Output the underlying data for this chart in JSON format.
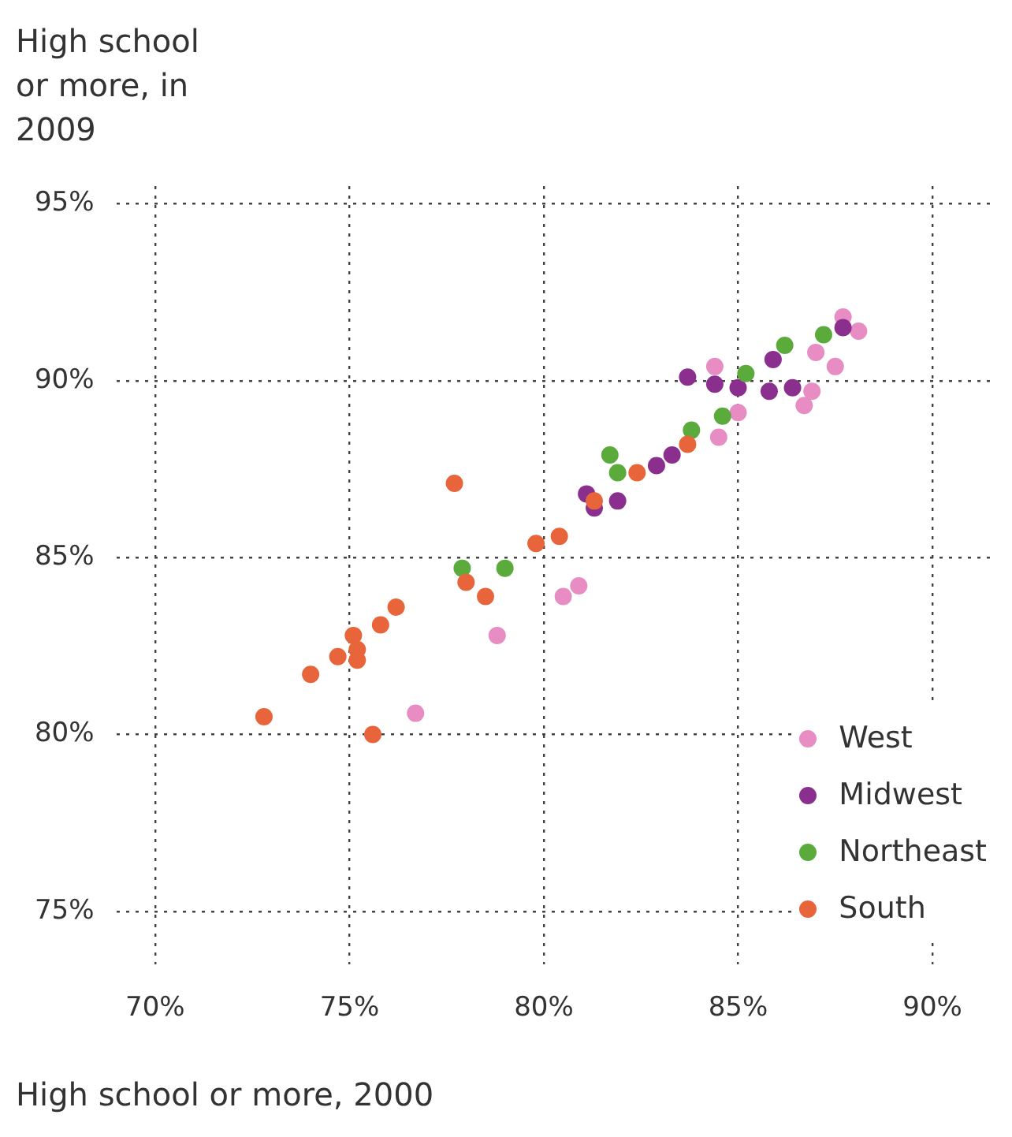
{
  "chart_data": {
    "type": "scatter",
    "xlabel": "High school or more, 2000",
    "ylabel": "High school or more, in 2009",
    "xlim": [
      69,
      91.5
    ],
    "ylim": [
      73.5,
      95.5
    ],
    "xticks": [
      {
        "value": 70,
        "label": "70%"
      },
      {
        "value": 75,
        "label": "75%"
      },
      {
        "value": 80,
        "label": "80%"
      },
      {
        "value": 85,
        "label": "85%"
      },
      {
        "value": 90,
        "label": "90%"
      }
    ],
    "yticks": [
      {
        "value": 75,
        "label": "75%"
      },
      {
        "value": 80,
        "label": "80%"
      },
      {
        "value": 85,
        "label": "85%"
      },
      {
        "value": 90,
        "label": "90%"
      },
      {
        "value": 95,
        "label": "95%"
      }
    ],
    "grid": true,
    "legend": "bottom right",
    "marker": "circle",
    "series": [
      {
        "name": "West",
        "color": "#e88cc4",
        "x": [
          76.7,
          78.8,
          80.5,
          80.9,
          84.4,
          84.5,
          85.0,
          86.7,
          86.9,
          87.0,
          87.5,
          87.7,
          88.1
        ],
        "values": [
          80.6,
          82.8,
          83.9,
          84.2,
          90.4,
          88.4,
          89.1,
          89.3,
          89.7,
          90.8,
          90.4,
          91.8,
          91.4
        ]
      },
      {
        "name": "Midwest",
        "color": "#8b2f8f",
        "x": [
          81.1,
          81.3,
          81.9,
          82.9,
          83.3,
          83.7,
          84.4,
          85.0,
          85.9,
          85.8,
          86.4,
          87.7
        ],
        "values": [
          86.8,
          86.4,
          86.6,
          87.6,
          87.9,
          90.1,
          89.9,
          89.8,
          90.6,
          89.7,
          89.8,
          91.5
        ]
      },
      {
        "name": "Northeast",
        "color": "#5aab3c",
        "x": [
          77.9,
          79.0,
          81.7,
          81.9,
          83.8,
          84.6,
          85.2,
          86.2,
          87.2
        ],
        "values": [
          84.7,
          84.7,
          87.9,
          87.4,
          88.6,
          89.0,
          90.2,
          91.0,
          91.3
        ]
      },
      {
        "name": "South",
        "color": "#e8643a",
        "x": [
          72.8,
          74.0,
          74.7,
          75.1,
          75.2,
          75.2,
          75.6,
          75.8,
          76.2,
          77.7,
          78.0,
          78.5,
          79.8,
          80.4,
          81.3,
          82.4,
          83.7
        ],
        "values": [
          80.5,
          81.7,
          82.2,
          82.8,
          82.4,
          82.1,
          80.0,
          83.1,
          83.6,
          87.1,
          84.3,
          83.9,
          85.4,
          85.6,
          86.6,
          87.4,
          88.2
        ]
      }
    ]
  }
}
